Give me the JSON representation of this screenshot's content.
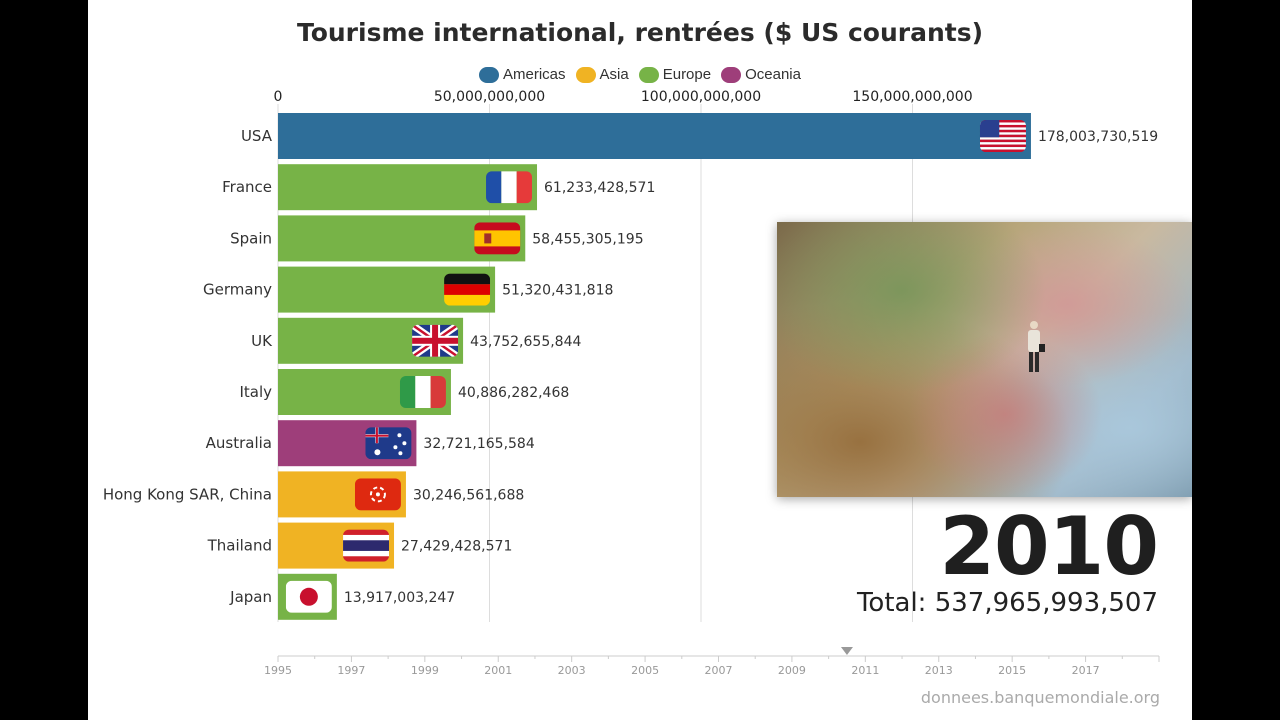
{
  "chart_data": {
    "type": "bar",
    "orientation": "horizontal",
    "title": "Tourisme international, rentrées ($ US courants)",
    "legend": [
      {
        "name": "Americas",
        "color": "#2e6e99"
      },
      {
        "name": "Asia",
        "color": "#f0b323"
      },
      {
        "name": "Europe",
        "color": "#77b347"
      },
      {
        "name": "Oceania",
        "color": "#9e3e7a"
      }
    ],
    "legend_position": "top",
    "xlim": [
      0,
      200000000000
    ],
    "x_ticks": [
      0,
      50000000000,
      100000000000,
      150000000000
    ],
    "x_tick_labels": [
      "0",
      "50,000,000,000",
      "100,000,000,000",
      "150,000,000,000"
    ],
    "grid": true,
    "categories": [
      "USA",
      "France",
      "Spain",
      "Germany",
      "UK",
      "Italy",
      "Australia",
      "Hong Kong SAR, China",
      "Thailand",
      "Japan"
    ],
    "values": [
      178003730519,
      61233428571,
      58455305195,
      51320431818,
      43752655844,
      40886282468,
      32721165584,
      30246561688,
      27429428571,
      13917003247
    ],
    "value_labels": [
      "178,003,730,519",
      "61,233,428,571",
      "58,455,305,195",
      "51,320,431,818",
      "43,752,655,844",
      "40,886,282,468",
      "32,721,165,584",
      "30,246,561,688",
      "27,429,428,571",
      "13,917,003,247"
    ],
    "regions": [
      "Americas",
      "Europe",
      "Europe",
      "Europe",
      "Europe",
      "Europe",
      "Oceania",
      "Asia",
      "Asia",
      "Europe"
    ],
    "flags": [
      "us-flag-icon",
      "fr-flag-icon",
      "es-flag-icon",
      "de-flag-icon",
      "uk-flag-icon",
      "it-flag-icon",
      "au-flag-icon",
      "hk-flag-icon",
      "th-flag-icon",
      "jp-flag-icon"
    ]
  },
  "overlay": {
    "year": "2010",
    "total": "Total: 537,965,993,507",
    "source": "donnees.banquemondiale.org"
  },
  "timeline": {
    "years": [
      "1995",
      "1997",
      "1999",
      "2001",
      "2003",
      "2005",
      "2007",
      "2009",
      "2011",
      "2013",
      "2015",
      "2017"
    ],
    "range": [
      1995,
      2019
    ],
    "current": 2010
  }
}
